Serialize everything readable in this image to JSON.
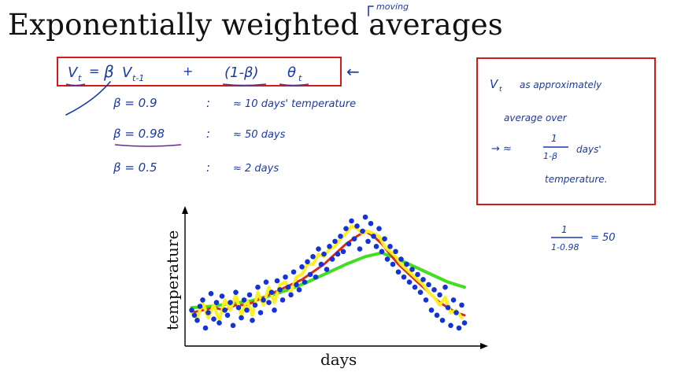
{
  "slide": {
    "title": "Exponentially weighted averages",
    "moving_note": "moving",
    "formula": {
      "v_t": "V",
      "v_t_sub": "t",
      "equals": "=",
      "beta": "β",
      "v_prev": "V",
      "v_prev_sub": "t-1",
      "plus": "+",
      "one_minus_beta": "(1-β)",
      "theta": "θ",
      "theta_sub": "t",
      "arrow": "←"
    },
    "beta_rows": [
      {
        "beta": "β = 0.9",
        "sep": ":",
        "approx": "≈ 10 days' temperature"
      },
      {
        "beta": "β = 0.98",
        "sep": ":",
        "approx": "≈ 50 days"
      },
      {
        "beta": "β = 0.5",
        "sep": ":",
        "approx": "≈ 2 days"
      }
    ],
    "note_box": {
      "line1": "V",
      "line1_sub": "t",
      "line1_rest": "as approximately",
      "line2": "average over",
      "line3_arrow": "→ ≈",
      "frac_num": "1",
      "frac_den": "1-β",
      "line3_rest": "days'",
      "line4": "temperature."
    },
    "calc": {
      "num": "1",
      "den": "1-0.98",
      "result": "= 50"
    }
  },
  "colors": {
    "ink": "#1a3aa8",
    "frame": "#d11a1a",
    "underline": "#6a2a8a",
    "points": "#1433d6",
    "ewa_098": "#44dd22",
    "ewa_09": "#dd2a18",
    "ewa_05": "#ffee22"
  },
  "chart_data": {
    "type": "scatter",
    "xlabel": "days",
    "ylabel": "temperature",
    "grid": false,
    "legend": "none",
    "xlim": [
      0,
      100
    ],
    "ylim": [
      0,
      100
    ],
    "series": [
      {
        "values": [
          [
            1,
            22
          ],
          [
            2,
            18
          ],
          [
            3,
            14
          ],
          [
            4,
            25
          ],
          [
            5,
            30
          ],
          [
            6,
            8
          ],
          [
            7,
            20
          ],
          [
            8,
            35
          ],
          [
            9,
            15
          ],
          [
            10,
            28
          ],
          [
            11,
            12
          ],
          [
            12,
            33
          ],
          [
            13,
            22
          ],
          [
            14,
            18
          ],
          [
            15,
            28
          ],
          [
            16,
            10
          ],
          [
            17,
            36
          ],
          [
            18,
            24
          ],
          [
            19,
            16
          ],
          [
            20,
            30
          ],
          [
            21,
            22
          ],
          [
            22,
            34
          ],
          [
            23,
            14
          ],
          [
            24,
            26
          ],
          [
            25,
            40
          ],
          [
            26,
            20
          ],
          [
            27,
            30
          ],
          [
            28,
            44
          ],
          [
            29,
            28
          ],
          [
            30,
            36
          ],
          [
            31,
            22
          ],
          [
            32,
            45
          ],
          [
            33,
            38
          ],
          [
            34,
            30
          ],
          [
            35,
            48
          ],
          [
            36,
            40
          ],
          [
            37,
            34
          ],
          [
            38,
            52
          ],
          [
            39,
            42
          ],
          [
            40,
            38
          ],
          [
            41,
            56
          ],
          [
            42,
            44
          ],
          [
            43,
            60
          ],
          [
            44,
            50
          ],
          [
            45,
            64
          ],
          [
            46,
            48
          ],
          [
            47,
            70
          ],
          [
            48,
            58
          ],
          [
            49,
            66
          ],
          [
            50,
            54
          ],
          [
            51,
            72
          ],
          [
            52,
            62
          ],
          [
            53,
            76
          ],
          [
            54,
            66
          ],
          [
            55,
            80
          ],
          [
            56,
            68
          ],
          [
            57,
            86
          ],
          [
            58,
            74
          ],
          [
            59,
            92
          ],
          [
            60,
            78
          ],
          [
            61,
            88
          ],
          [
            62,
            70
          ],
          [
            63,
            84
          ],
          [
            64,
            95
          ],
          [
            65,
            76
          ],
          [
            66,
            90
          ],
          [
            67,
            80
          ],
          [
            68,
            72
          ],
          [
            69,
            86
          ],
          [
            70,
            68
          ],
          [
            71,
            78
          ],
          [
            72,
            62
          ],
          [
            73,
            72
          ],
          [
            74,
            58
          ],
          [
            75,
            68
          ],
          [
            76,
            52
          ],
          [
            77,
            62
          ],
          [
            78,
            48
          ],
          [
            79,
            58
          ],
          [
            80,
            44
          ],
          [
            81,
            54
          ],
          [
            82,
            40
          ],
          [
            83,
            50
          ],
          [
            84,
            36
          ],
          [
            85,
            46
          ],
          [
            86,
            30
          ],
          [
            87,
            42
          ],
          [
            88,
            22
          ],
          [
            89,
            38
          ],
          [
            90,
            18
          ],
          [
            91,
            34
          ],
          [
            92,
            14
          ],
          [
            93,
            40
          ],
          [
            94,
            24
          ],
          [
            95,
            10
          ],
          [
            96,
            30
          ],
          [
            97,
            20
          ],
          [
            98,
            8
          ],
          [
            99,
            26
          ],
          [
            100,
            12
          ]
        ]
      },
      {
        "values": [
          [
            1,
            24
          ],
          [
            8,
            25
          ],
          [
            15,
            27
          ],
          [
            22,
            29
          ],
          [
            29,
            33
          ],
          [
            36,
            38
          ],
          [
            43,
            44
          ],
          [
            50,
            51
          ],
          [
            57,
            58
          ],
          [
            64,
            64
          ],
          [
            70,
            67
          ],
          [
            76,
            62
          ],
          [
            82,
            56
          ],
          [
            88,
            50
          ],
          [
            94,
            44
          ],
          [
            100,
            40
          ]
        ]
      },
      {
        "values": [
          [
            1,
            20
          ],
          [
            5,
            22
          ],
          [
            9,
            24
          ],
          [
            13,
            22
          ],
          [
            17,
            26
          ],
          [
            21,
            26
          ],
          [
            25,
            30
          ],
          [
            29,
            34
          ],
          [
            33,
            38
          ],
          [
            37,
            42
          ],
          [
            41,
            46
          ],
          [
            45,
            52
          ],
          [
            49,
            58
          ],
          [
            53,
            66
          ],
          [
            57,
            74
          ],
          [
            61,
            80
          ],
          [
            64,
            84
          ],
          [
            67,
            80
          ],
          [
            70,
            74
          ],
          [
            73,
            66
          ],
          [
            76,
            58
          ],
          [
            79,
            52
          ],
          [
            82,
            46
          ],
          [
            85,
            40
          ],
          [
            88,
            34
          ],
          [
            91,
            28
          ],
          [
            94,
            24
          ],
          [
            97,
            20
          ],
          [
            100,
            18
          ]
        ]
      },
      {
        "values": [
          [
            1,
            20
          ],
          [
            3,
            16
          ],
          [
            5,
            28
          ],
          [
            7,
            16
          ],
          [
            9,
            26
          ],
          [
            11,
            14
          ],
          [
            13,
            30
          ],
          [
            15,
            22
          ],
          [
            17,
            34
          ],
          [
            19,
            18
          ],
          [
            21,
            30
          ],
          [
            23,
            18
          ],
          [
            25,
            36
          ],
          [
            27,
            26
          ],
          [
            29,
            40
          ],
          [
            31,
            28
          ],
          [
            33,
            42
          ],
          [
            35,
            44
          ],
          [
            37,
            36
          ],
          [
            39,
            48
          ],
          [
            41,
            50
          ],
          [
            43,
            58
          ],
          [
            45,
            58
          ],
          [
            47,
            66
          ],
          [
            49,
            64
          ],
          [
            51,
            70
          ],
          [
            53,
            72
          ],
          [
            55,
            78
          ],
          [
            57,
            82
          ],
          [
            59,
            88
          ],
          [
            61,
            86
          ],
          [
            63,
            82
          ],
          [
            65,
            84
          ],
          [
            67,
            82
          ],
          [
            69,
            80
          ],
          [
            71,
            72
          ],
          [
            73,
            68
          ],
          [
            75,
            64
          ],
          [
            77,
            58
          ],
          [
            79,
            54
          ],
          [
            81,
            50
          ],
          [
            83,
            46
          ],
          [
            85,
            42
          ],
          [
            87,
            36
          ],
          [
            89,
            32
          ],
          [
            91,
            26
          ],
          [
            93,
            32
          ],
          [
            95,
            20
          ],
          [
            97,
            22
          ],
          [
            99,
            16
          ]
        ]
      }
    ]
  }
}
